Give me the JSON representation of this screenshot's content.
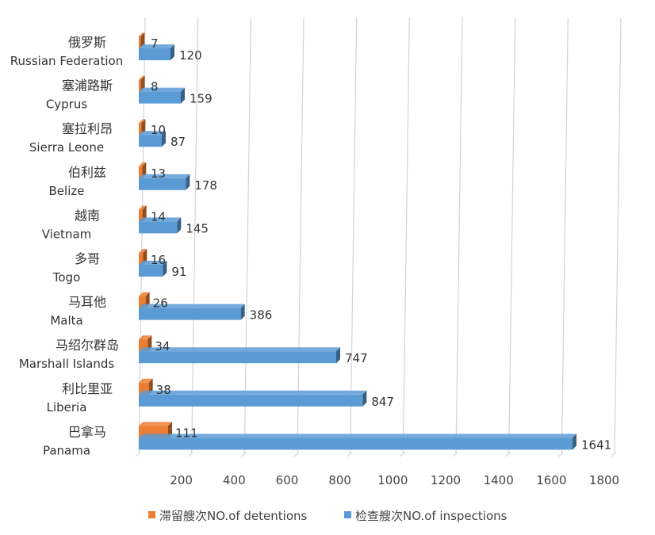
{
  "chart_data": {
    "type": "bar",
    "orientation": "horizontal",
    "style": "3d",
    "categories": [
      {
        "cn": "俄罗斯",
        "en": "Russian Federation"
      },
      {
        "cn": "塞浦路斯",
        "en": "Cyprus"
      },
      {
        "cn": "塞拉利昂",
        "en": "Sierra Leone"
      },
      {
        "cn": "伯利兹",
        "en": "Belize"
      },
      {
        "cn": "越南",
        "en": "Vietnam"
      },
      {
        "cn": "多哥",
        "en": "Togo"
      },
      {
        "cn": "马耳他",
        "en": "Malta"
      },
      {
        "cn": "马绍尔群岛",
        "en": "Marshall Islands"
      },
      {
        "cn": "利比里亚",
        "en": "Liberia"
      },
      {
        "cn": "巴拿马",
        "en": "Panama"
      }
    ],
    "series": [
      {
        "name": "滞留艘次NO.of detentions",
        "color": "#ED7D31",
        "values": [
          7,
          8,
          10,
          13,
          14,
          16,
          26,
          34,
          38,
          111
        ]
      },
      {
        "name": "检查艘次NO.of inspections",
        "color": "#5B9BD5",
        "values": [
          120,
          159,
          87,
          178,
          145,
          91,
          386,
          747,
          847,
          1641
        ]
      }
    ],
    "xlim": [
      0,
      1800
    ],
    "xticks": [
      "200",
      "400",
      "600",
      "800",
      "1000",
      "1200",
      "1400",
      "1600",
      "1800"
    ],
    "grid": true,
    "legend_position": "bottom",
    "data_labels": true
  }
}
